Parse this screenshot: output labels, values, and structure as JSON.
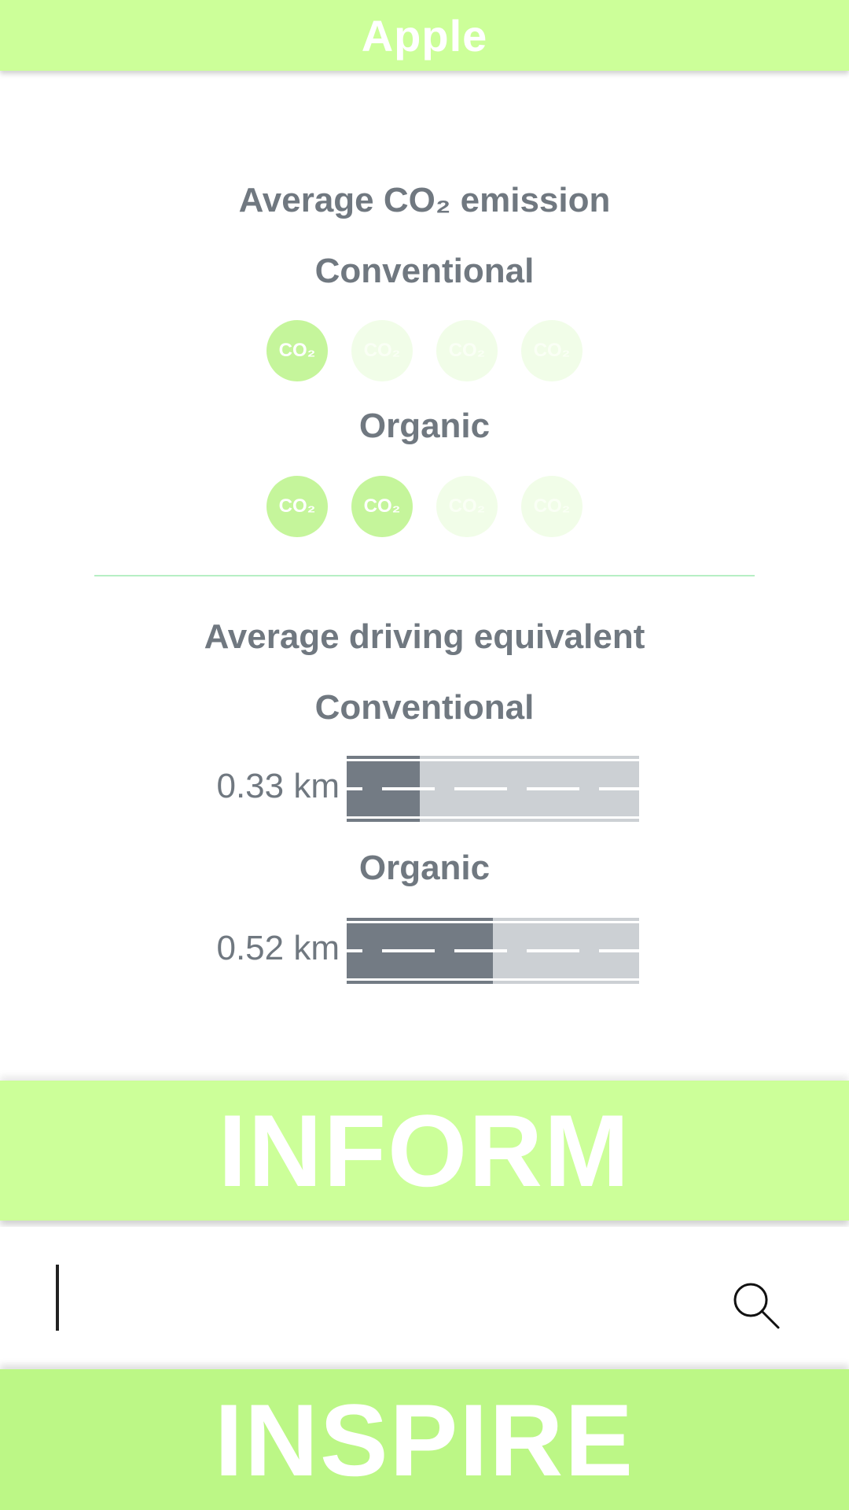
{
  "header": {
    "title": "Apple"
  },
  "emission": {
    "heading": "Average CO₂ emission",
    "conventional": {
      "label": "Conventional",
      "tokens": [
        "CO₂",
        "CO₂",
        "CO₂",
        "CO₂"
      ],
      "filled_count": 1,
      "total_count": 4
    },
    "organic": {
      "label": "Organic",
      "tokens": [
        "CO₂",
        "CO₂",
        "CO₂",
        "CO₂"
      ],
      "filled_count": 2,
      "total_count": 4
    }
  },
  "driving": {
    "heading": "Average driving equivalent",
    "conventional": {
      "label": "Conventional",
      "value": "0.33 km",
      "fraction": 0.25
    },
    "organic": {
      "label": "Organic",
      "value": "0.52 km",
      "fraction": 0.5
    }
  },
  "banners": {
    "inform": "INFORM",
    "inspire": "INSPIRE"
  },
  "search": {
    "value": "",
    "placeholder": "",
    "icon": "search-icon"
  },
  "colors": {
    "header_bg": "#ccff99",
    "accent_green": "#c5f59b",
    "text_gray": "#707880",
    "road_dark": "#737b84",
    "road_light": "#ccd0d4"
  }
}
